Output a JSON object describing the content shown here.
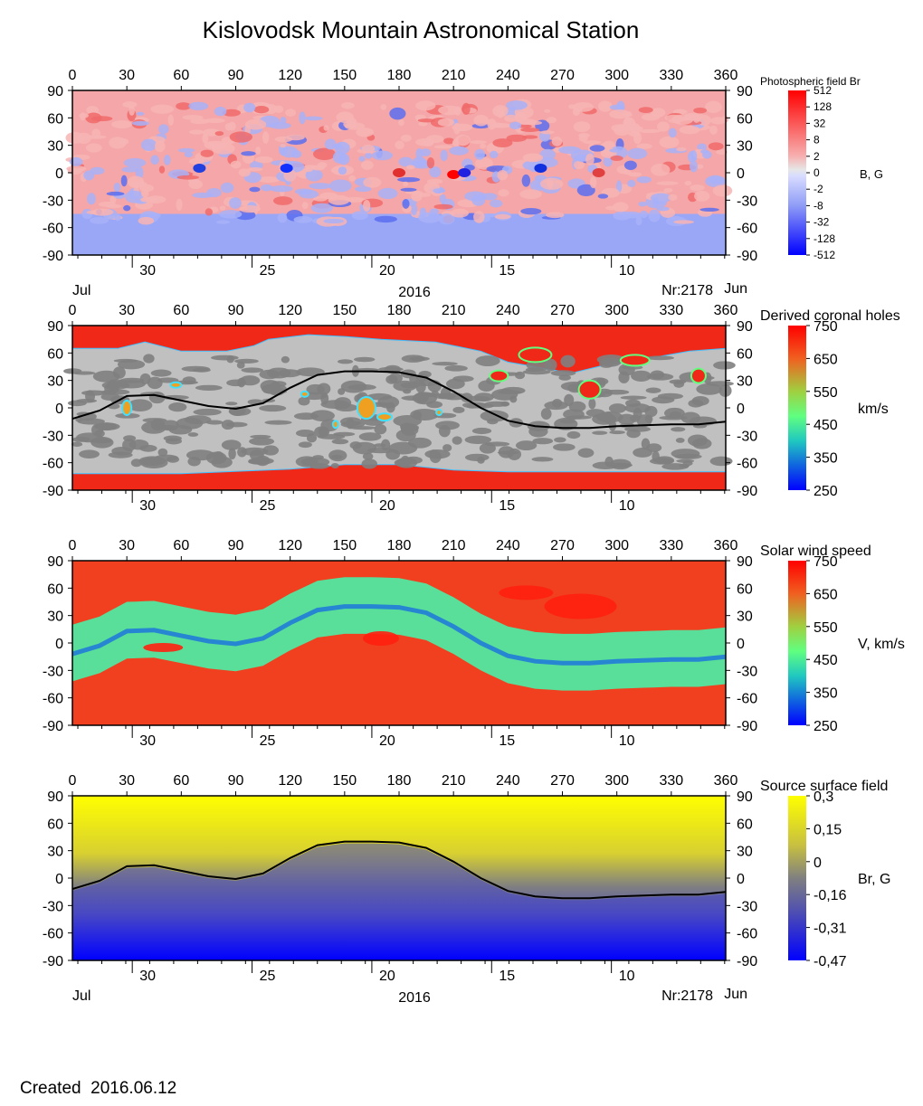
{
  "title": "Kislovodsk Mountain Astronomical Station",
  "created": "Created  2016.06.12",
  "axes": {
    "longitude_ticks": [
      0,
      30,
      60,
      90,
      120,
      150,
      180,
      210,
      240,
      270,
      300,
      330,
      360
    ],
    "latitude_ticks": [
      90,
      60,
      30,
      0,
      -30,
      -60,
      -90
    ],
    "date_ticks": [
      {
        "label": "30",
        "lon": 33
      },
      {
        "label": "25",
        "lon": 99
      },
      {
        "label": "20",
        "lon": 165
      },
      {
        "label": "15",
        "lon": 231
      },
      {
        "label": "10",
        "lon": 297
      }
    ],
    "month_left": "Jul",
    "month_right": "Jun",
    "year": "2016",
    "rotation": "Nr:2178"
  },
  "colors": {
    "pos_strong": "#ff0000",
    "neg_strong": "#0000ff",
    "speed_low": "#0000ff",
    "speed_high": "#ff0000",
    "field_pos": "#ffff00",
    "field_neg": "#0000ff",
    "field_zero": "#808080",
    "hole_gray_light": "#c0c0c0",
    "hole_gray_dark": "#808080",
    "neutral_line": "#000000"
  },
  "chart_data": [
    {
      "type": "heatmap",
      "title": "Photospheric field Br",
      "colorbar_label": "B, G",
      "colorbar_ticks": [
        "512",
        "128",
        "32",
        "8",
        "2",
        "0",
        "-2",
        "-8",
        "-32",
        "-128",
        "-512"
      ],
      "xlim": [
        0,
        360
      ],
      "ylim": [
        -90,
        90
      ],
      "polarity_regions": [
        {
          "sign": "positive",
          "lon": [
            0,
            360
          ],
          "lat": [
            30,
            90
          ]
        },
        {
          "sign": "negative",
          "lon": [
            0,
            360
          ],
          "lat": [
            -90,
            -45
          ]
        },
        {
          "sign": "mixed",
          "lon": [
            0,
            360
          ],
          "lat": [
            -45,
            30
          ]
        }
      ]
    },
    {
      "type": "heatmap",
      "title": "Derived coronal holes",
      "colorbar_label": "km/s",
      "colorbar_ticks": [
        750,
        650,
        550,
        450,
        350,
        250
      ],
      "xlim": [
        0,
        360
      ],
      "ylim": [
        -90,
        90
      ],
      "neutral_line": [
        [
          0,
          -12
        ],
        [
          15,
          -3
        ],
        [
          30,
          13
        ],
        [
          45,
          14
        ],
        [
          60,
          8
        ],
        [
          75,
          2
        ],
        [
          90,
          -1
        ],
        [
          105,
          5
        ],
        [
          120,
          22
        ],
        [
          135,
          36
        ],
        [
          150,
          40
        ],
        [
          165,
          40
        ],
        [
          180,
          39
        ],
        [
          195,
          33
        ],
        [
          210,
          18
        ],
        [
          225,
          0
        ],
        [
          240,
          -14
        ],
        [
          255,
          -20
        ],
        [
          270,
          -22
        ],
        [
          285,
          -22
        ],
        [
          300,
          -20
        ],
        [
          315,
          -19
        ],
        [
          330,
          -18
        ],
        [
          345,
          -18
        ],
        [
          360,
          -15
        ]
      ]
    },
    {
      "type": "heatmap",
      "title": "Solar wind speed",
      "colorbar_label": "V, km/s",
      "colorbar_ticks": [
        750,
        650,
        550,
        450,
        350,
        250
      ],
      "xlim": [
        0,
        360
      ],
      "ylim": [
        -90,
        90
      ]
    },
    {
      "type": "heatmap",
      "title": "Source surface field",
      "colorbar_label": "Br, G",
      "colorbar_ticks": [
        "0,3",
        "0,15",
        "0",
        "-0,16",
        "-0,31",
        "-0,47"
      ],
      "xlim": [
        0,
        360
      ],
      "ylim": [
        -90,
        90
      ],
      "neutral_line": [
        [
          0,
          -12
        ],
        [
          15,
          -3
        ],
        [
          30,
          13
        ],
        [
          45,
          14
        ],
        [
          60,
          8
        ],
        [
          75,
          2
        ],
        [
          90,
          -1
        ],
        [
          105,
          5
        ],
        [
          120,
          22
        ],
        [
          135,
          36
        ],
        [
          150,
          40
        ],
        [
          165,
          40
        ],
        [
          180,
          39
        ],
        [
          195,
          33
        ],
        [
          210,
          18
        ],
        [
          225,
          0
        ],
        [
          240,
          -14
        ],
        [
          255,
          -20
        ],
        [
          270,
          -22
        ],
        [
          285,
          -22
        ],
        [
          300,
          -20
        ],
        [
          315,
          -19
        ],
        [
          330,
          -18
        ],
        [
          345,
          -18
        ],
        [
          360,
          -15
        ]
      ]
    }
  ]
}
